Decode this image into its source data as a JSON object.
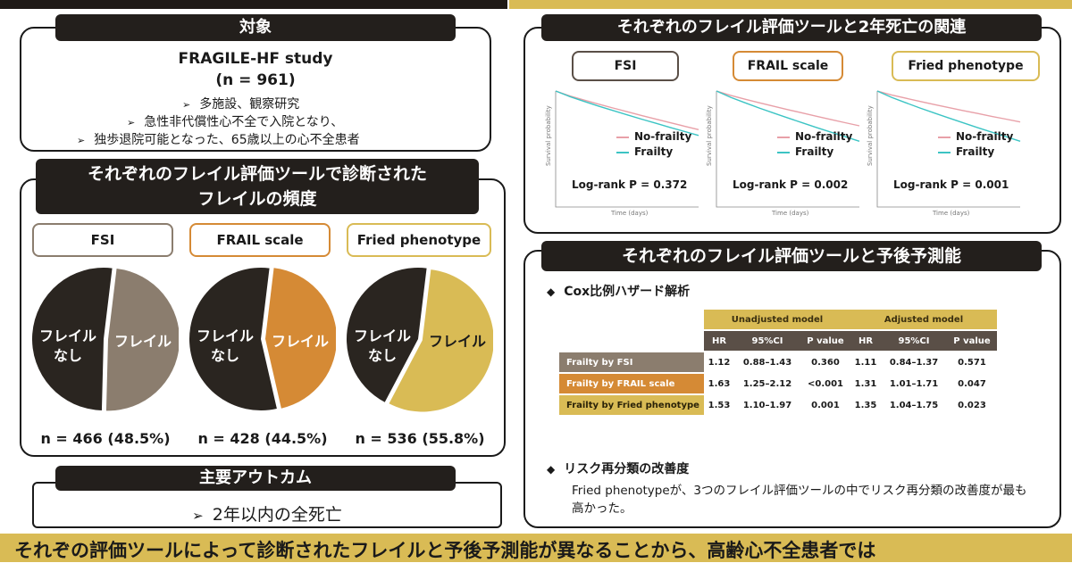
{
  "subject": {
    "header": "対象",
    "study_name": "FRAGILE-HF study",
    "n": "(n = 961)",
    "bullets": [
      "多施設、観察研究",
      "急性非代償性心不全で入院となり、",
      "独歩退院可能となった、65歳以上の心不全患者"
    ]
  },
  "frequency": {
    "header_line1": "それぞれのフレイル評価ツールで診断された",
    "header_line2": "フレイルの頻度",
    "tools": [
      {
        "label": "FSI",
        "frailty_pct": 48.5,
        "no_frailty_label": "フレイル\nなし",
        "frailty_label": "フレイル",
        "n_text": "n = 466 (48.5%)",
        "color": "#8b7d6e"
      },
      {
        "label": "FRAIL scale",
        "frailty_pct": 44.5,
        "no_frailty_label": "フレイル\nなし",
        "frailty_label": "フレイル",
        "n_text": "n = 428 (44.5%)",
        "color": "#d58a35"
      },
      {
        "label": "Fried phenotype",
        "frailty_pct": 55.8,
        "no_frailty_label": "フレイル\nなし",
        "frailty_label": "フレイル",
        "n_text": "n = 536 (55.8%)",
        "color": "#d9bb55"
      }
    ],
    "no_frailty_color": "#2a2520"
  },
  "outcome": {
    "header": "主要アウトカム",
    "text": "2年以内の全死亡"
  },
  "mortality": {
    "header": "それぞれのフレイル評価ツールと2年死亡の関連",
    "panels": [
      {
        "label": "FSI",
        "border": "#5a4f47",
        "legend_no": "No-frailty",
        "legend_yes": "Frailty",
        "p_text": "Log-rank P = 0.372",
        "no_end": 0.8,
        "yes_end": 0.77
      },
      {
        "label": "FRAIL scale",
        "border": "#d58a35",
        "legend_no": "No-frailty",
        "legend_yes": "Frailty",
        "p_text": "Log-rank P = 0.002",
        "no_end": 0.82,
        "yes_end": 0.74
      },
      {
        "label": "Fried phenotype",
        "border": "#d9bb55",
        "legend_no": "No-frailty",
        "legend_yes": "Frailty",
        "p_text": "Log-rank P = 0.001",
        "no_end": 0.84,
        "yes_end": 0.74
      }
    ],
    "legend_no_color": "#e8a0a8",
    "legend_yes_color": "#3cc4c4",
    "axis_y": "Survival probability",
    "axis_x": "Time (days)"
  },
  "prognosis": {
    "header": "それぞれのフレイル評価ツールと予後予測能",
    "cox_title": "Cox比例ハザード解析",
    "group_headers": [
      "Unadjusted model",
      "Adjusted model"
    ],
    "col_headers": [
      "HR",
      "95%CI",
      "P value",
      "HR",
      "95%CI",
      "P value"
    ],
    "rows": [
      {
        "label": "Frailty by FSI",
        "color": "#8b7d6e",
        "cells": [
          "1.12",
          "0.88–1.43",
          "0.360",
          "1.11",
          "0.84–1.37",
          "0.571"
        ]
      },
      {
        "label": "Frailty by FRAIL scale",
        "color": "#d58a35",
        "cells": [
          "1.63",
          "1.25–2.12",
          "<0.001",
          "1.31",
          "1.01–1.71",
          "0.047"
        ]
      },
      {
        "label": "Frailty by Fried phenotype",
        "color": "#d9bb55",
        "cells": [
          "1.53",
          "1.10–1.97",
          "0.001",
          "1.35",
          "1.04–1.75",
          "0.023"
        ]
      }
    ],
    "risk_title": "リスク再分類の改善度",
    "risk_text": "Fried phenotypeが、3つのフレイル評価ツールの中でリスク再分類の改善度が最も高かった。"
  },
  "banner": {
    "text": "それぞの評価ツールによって診断されたフレイルと予後予測能が異なることから、高齢心不全患者では"
  }
}
